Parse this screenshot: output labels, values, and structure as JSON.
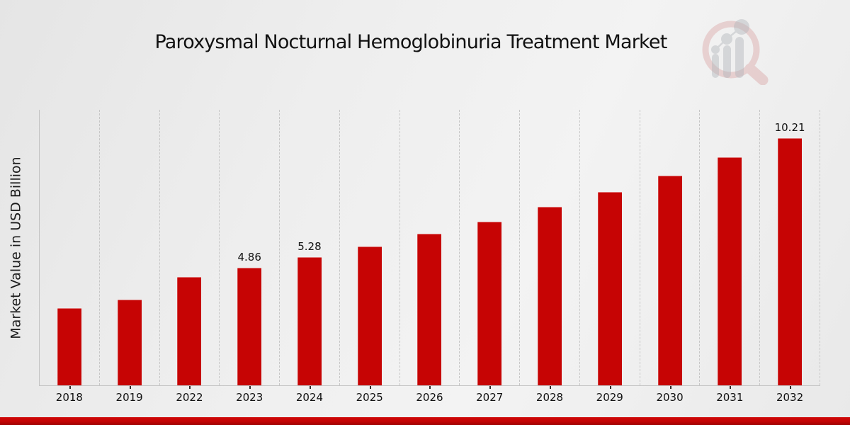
{
  "title": "Paroxysmal Nocturnal Hemoglobinuria Treatment Market",
  "y_axis_label": "Market Value in USD Billion",
  "logo": {
    "name": "market-research-future-logo"
  },
  "colors": {
    "bar": "#c60404",
    "accent_band": "#c30404",
    "gridline": "#c6c6c6",
    "axis": "#c3c3c3",
    "text": "#111111",
    "logo_ring": "#d9a3a3",
    "logo_bars": "#b3b6bc"
  },
  "chart_data": {
    "type": "bar",
    "title": "Paroxysmal Nocturnal Hemoglobinuria Treatment Market",
    "xlabel": "",
    "ylabel": "Market Value in USD Billion",
    "categories": [
      "2018",
      "2019",
      "2022",
      "2023",
      "2024",
      "2025",
      "2026",
      "2027",
      "2028",
      "2029",
      "2030",
      "2031",
      "2032"
    ],
    "values": [
      3.19,
      3.54,
      4.48,
      4.86,
      5.28,
      5.72,
      6.25,
      6.76,
      7.36,
      7.98,
      8.66,
      9.4,
      10.21
    ],
    "data_labels": [
      null,
      null,
      null,
      "4.86",
      "5.28",
      null,
      null,
      null,
      null,
      null,
      null,
      null,
      "10.21"
    ],
    "ylim": [
      0,
      11.4
    ],
    "y_ticks_shown": false,
    "grid": "vertical dashed column separators",
    "legend": "none",
    "bar_color": "#c60404",
    "unit": "USD Billion"
  }
}
